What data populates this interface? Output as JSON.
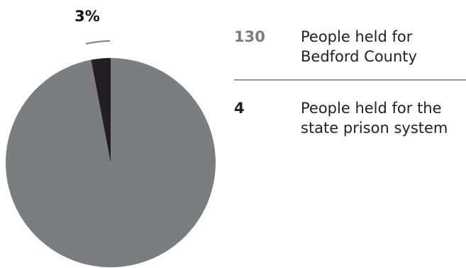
{
  "chart_data": {
    "type": "pie",
    "slices": [
      {
        "value": 130,
        "label": "People held for\nBedford County",
        "color": "#7b7d80"
      },
      {
        "value": 4,
        "label": "People held for the\nstate prison system",
        "color": "#231f20"
      }
    ],
    "annotation": "3%"
  },
  "legend": {
    "items": [
      {
        "value": "130",
        "label": "People held for\nBedford County",
        "color": "#7b7d80"
      },
      {
        "value": "4",
        "label": "People held for the\nstate prison system",
        "color": "#231f20"
      }
    ]
  }
}
